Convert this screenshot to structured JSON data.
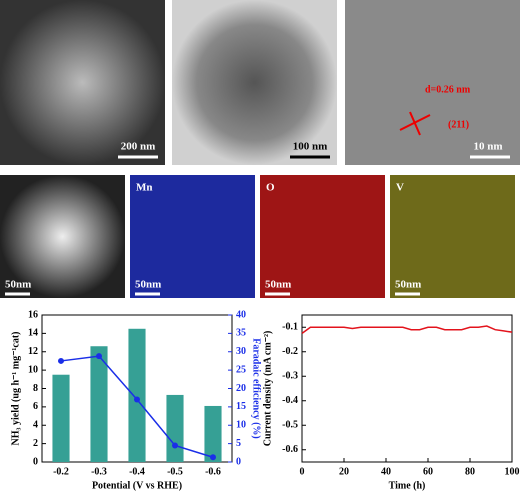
{
  "images": {
    "a": {
      "scale": "200 nm"
    },
    "b": {
      "scale": "100 nm"
    },
    "c": {
      "scale": "10 nm",
      "spacing": "d=0.26 nm",
      "plane": "(211)"
    },
    "maps": [
      {
        "label": null,
        "scale": "50nm"
      },
      {
        "label": "Mn",
        "scale": "50nm"
      },
      {
        "label": "O",
        "scale": "50nm"
      },
      {
        "label": "V",
        "scale": "50nm"
      }
    ]
  },
  "chart_data": [
    {
      "type": "bar",
      "categories": [
        "-0.2",
        "-0.3",
        "-0.4",
        "-0.5",
        "-0.6"
      ],
      "xlabel": "Potential (V vs RHE)",
      "ylabel": "NH₃ yield (ug h⁻¹ mg⁻¹cat)",
      "y2label": "Faradaic efficiency (%)",
      "ylim": [
        0,
        16
      ],
      "yticks": [
        0,
        2,
        4,
        6,
        8,
        10,
        12,
        14,
        16
      ],
      "y2lim": [
        0,
        40
      ],
      "y2ticks": [
        0,
        5,
        10,
        15,
        20,
        25,
        30,
        35,
        40
      ],
      "series": [
        {
          "color": "#36a095",
          "values": [
            9.5,
            12.6,
            14.5,
            7.3,
            6.1
          ]
        },
        {
          "type": "line",
          "axis": "y2",
          "color": "#1a2ee8",
          "values": [
            27.5,
            28.8,
            17,
            4.5,
            1.3
          ]
        }
      ]
    },
    {
      "type": "line",
      "xlabel": "Time (h)",
      "ylabel": "Current density (mA cm⁻²)",
      "xlim": [
        0,
        100
      ],
      "xticks": [
        0,
        20,
        40,
        60,
        80,
        100
      ],
      "ylim": [
        -0.65,
        -0.05
      ],
      "yticks": [
        -0.1,
        -0.2,
        -0.3,
        -0.4,
        -0.5,
        -0.6
      ],
      "x": [
        0,
        4,
        8,
        12,
        16,
        20,
        24,
        28,
        32,
        36,
        40,
        44,
        48,
        52,
        56,
        60,
        64,
        68,
        72,
        76,
        80,
        84,
        88,
        92,
        96,
        100
      ],
      "series": [
        {
          "color": "#e3131c",
          "values": [
            -0.125,
            -0.1,
            -0.1,
            -0.1,
            -0.1,
            -0.1,
            -0.105,
            -0.1,
            -0.1,
            -0.1,
            -0.1,
            -0.1,
            -0.1,
            -0.11,
            -0.11,
            -0.1,
            -0.1,
            -0.11,
            -0.11,
            -0.11,
            -0.1,
            -0.1,
            -0.095,
            -0.11,
            -0.115,
            -0.12
          ]
        }
      ]
    }
  ]
}
